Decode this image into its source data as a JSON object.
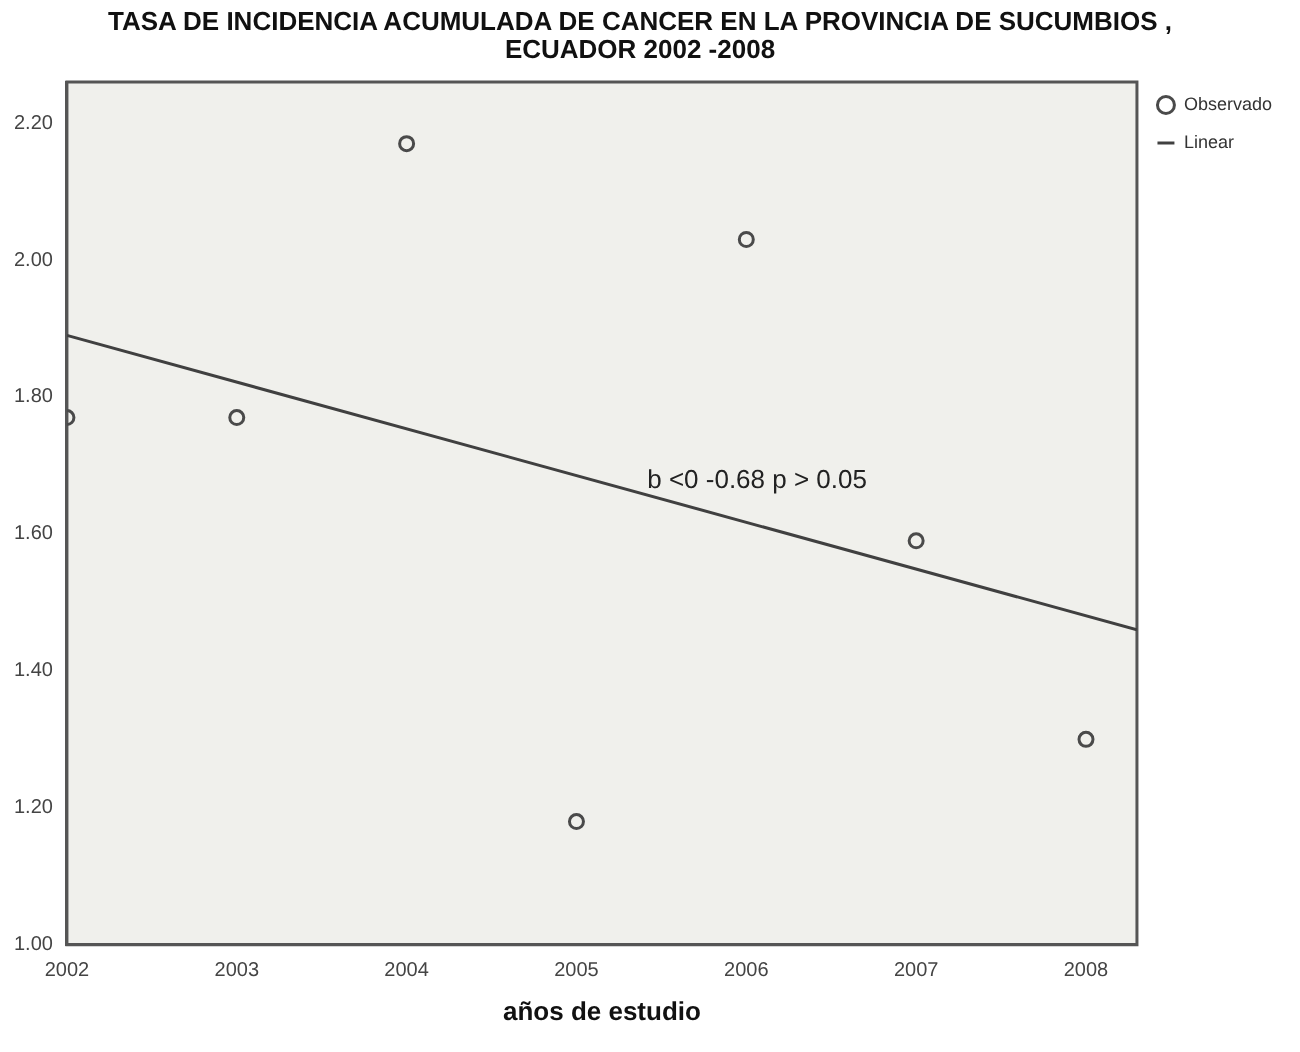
{
  "chart_data": {
    "type": "scatter",
    "title": "TASA DE INCIDENCIA ACUMULADA DE CANCER EN LA PROVINCIA DE SUCUMBIOS , ECUADOR 2002 -2008",
    "xlabel": "años de estudio",
    "series": [
      {
        "name": "Observado",
        "type": "scatter",
        "color": "#4a4a4a",
        "marker": "circle",
        "x": [
          2002,
          2003,
          2004,
          2005,
          2006,
          2007,
          2008
        ],
        "values": [
          1.77,
          1.77,
          2.17,
          1.18,
          2.03,
          1.59,
          1.3
        ]
      },
      {
        "name": "Linear",
        "type": "line",
        "color": "#404040",
        "marker": "none",
        "x": [
          2002,
          2008.3
        ],
        "values": [
          1.89,
          1.46
        ]
      }
    ],
    "annotations": [
      "b <0 -0.68 p > 0.05"
    ],
    "xlim": [
      2002,
      2008.3
    ],
    "xticks": [
      2002,
      2003,
      2004,
      2005,
      2006,
      2007,
      2008
    ],
    "ylim": [
      1.0,
      2.26
    ],
    "yticks": [
      {
        "value": 1.0,
        "label": "1.00"
      },
      {
        "value": 1.2,
        "label": "1.20"
      },
      {
        "value": 1.4,
        "label": "1.40"
      },
      {
        "value": 1.6,
        "label": "1.60"
      },
      {
        "value": 1.8,
        "label": "1.80"
      },
      {
        "value": 2.0,
        "label": "2.00"
      },
      {
        "value": 2.2,
        "label": "2.20"
      }
    ],
    "grid": false,
    "legend": "top right"
  }
}
